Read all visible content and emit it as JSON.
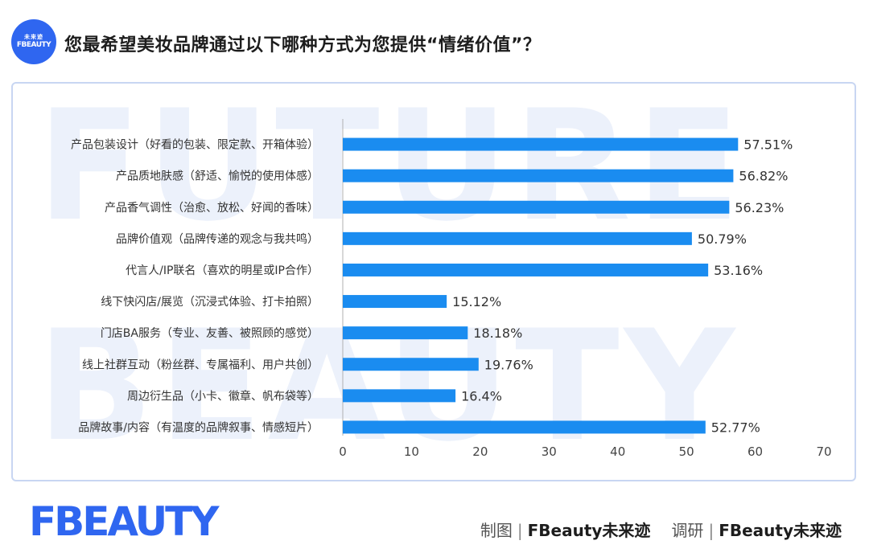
{
  "header": {
    "logo_text_cn": "未来迹",
    "logo_text_en": "FBEAUTY",
    "question": "您最希望美妆品牌通过以下哪种方式为您提供“情绪价值”？"
  },
  "watermark": {
    "line1": "FUTURE",
    "line2": "BEAUTY"
  },
  "footer": {
    "logo": "FBEAUTY",
    "made_label": "制图",
    "made_by": "FBeauty未来迹",
    "research_label": "调研",
    "research_by": "FBeauty未来迹"
  },
  "colors": {
    "bar": "#1a8cf0",
    "accent": "#2f66f0",
    "axis": "#b0b0b0"
  },
  "chart_data": {
    "type": "bar",
    "orientation": "horizontal",
    "categories": [
      "产品包装设计（好看的包装、限定款、开箱体验）",
      "产品质地肤感（舒适、愉悦的使用体感）",
      "产品香气调性（治愈、放松、好闻的香味）",
      "品牌价值观（品牌传递的观念与我共鸣）",
      "代言人/IP联名（喜欢的明星或IP合作）",
      "线下快闪店/展览（沉浸式体验、打卡拍照）",
      "门店BA服务（专业、友善、被照顾的感觉）",
      "线上社群互动（粉丝群、专属福利、用户共创）",
      "周边衍生品（小卡、徽章、帆布袋等）",
      "品牌故事/内容（有温度的品牌叙事、情感短片）"
    ],
    "values": [
      57.51,
      56.82,
      56.23,
      50.79,
      53.16,
      15.12,
      18.18,
      19.76,
      16.4,
      52.77
    ],
    "value_labels": [
      "57.51%",
      "56.82%",
      "56.23%",
      "50.79%",
      "53.16%",
      "15.12%",
      "18.18%",
      "19.76%",
      "16.4%",
      "52.77%"
    ],
    "xlim": [
      0,
      70
    ],
    "xticks": [
      0,
      10,
      20,
      30,
      40,
      50,
      60,
      70
    ],
    "xlabel": "",
    "ylabel": "",
    "grid": false,
    "legend": "none"
  }
}
